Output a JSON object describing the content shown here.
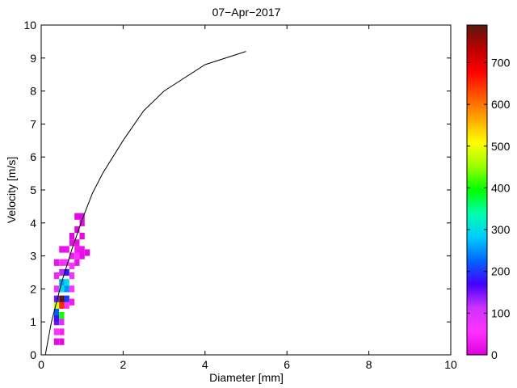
{
  "chart_data": {
    "type": "heatmap",
    "title": "07−Apr−2017",
    "xlabel": "Diameter [mm]",
    "ylabel": "Velocity [m/s]",
    "xlim": [
      0,
      10
    ],
    "ylim": [
      0,
      10
    ],
    "xticks": [
      "0",
      "2",
      "4",
      "6",
      "8",
      "10"
    ],
    "yticks": [
      "0",
      "1",
      "2",
      "3",
      "4",
      "5",
      "6",
      "7",
      "8",
      "9",
      "10"
    ],
    "grid": false,
    "colorbar": {
      "min": 0,
      "max": 790,
      "ticks": [
        "0",
        "100",
        "200",
        "300",
        "400",
        "500",
        "600",
        "700"
      ],
      "colormap": [
        "#dd00dd",
        "#ff33ff",
        "#cc33ff",
        "#4400ff",
        "#0066ff",
        "#00ccff",
        "#00ffaa",
        "#00ff00",
        "#99ff00",
        "#ffff00",
        "#ffaa00",
        "#ff5500",
        "#ff0000",
        "#bb0000",
        "#5a1a10"
      ]
    },
    "cells": [
      {
        "x": 0.375,
        "y": 0.4,
        "count": 10
      },
      {
        "x": 0.375,
        "y": 0.7,
        "count": 60
      },
      {
        "x": 0.375,
        "y": 1.0,
        "count": 150
      },
      {
        "x": 0.375,
        "y": 1.1,
        "count": 180
      },
      {
        "x": 0.375,
        "y": 1.3,
        "count": 220
      },
      {
        "x": 0.375,
        "y": 1.5,
        "count": 480
      },
      {
        "x": 0.375,
        "y": 1.7,
        "count": 150
      },
      {
        "x": 0.375,
        "y": 2.0,
        "count": 70
      },
      {
        "x": 0.375,
        "y": 2.4,
        "count": 40
      },
      {
        "x": 0.375,
        "y": 2.8,
        "count": 20
      },
      {
        "x": 0.5,
        "y": 0.4,
        "count": 10
      },
      {
        "x": 0.5,
        "y": 0.7,
        "count": 40
      },
      {
        "x": 0.5,
        "y": 1.0,
        "count": 100
      },
      {
        "x": 0.5,
        "y": 1.2,
        "count": 400
      },
      {
        "x": 0.5,
        "y": 1.5,
        "count": 650
      },
      {
        "x": 0.5,
        "y": 1.7,
        "count": 790
      },
      {
        "x": 0.5,
        "y": 2.0,
        "count": 300
      },
      {
        "x": 0.5,
        "y": 2.2,
        "count": 260
      },
      {
        "x": 0.5,
        "y": 2.5,
        "count": 120
      },
      {
        "x": 0.5,
        "y": 2.8,
        "count": 50
      },
      {
        "x": 0.5,
        "y": 3.2,
        "count": 20
      },
      {
        "x": 0.625,
        "y": 1.5,
        "count": 60
      },
      {
        "x": 0.625,
        "y": 1.7,
        "count": 200
      },
      {
        "x": 0.625,
        "y": 2.0,
        "count": 250
      },
      {
        "x": 0.625,
        "y": 2.2,
        "count": 300
      },
      {
        "x": 0.625,
        "y": 2.5,
        "count": 180
      },
      {
        "x": 0.625,
        "y": 2.8,
        "count": 60
      },
      {
        "x": 0.625,
        "y": 3.2,
        "count": 20
      },
      {
        "x": 0.75,
        "y": 1.6,
        "count": 30
      },
      {
        "x": 0.75,
        "y": 2.0,
        "count": 60
      },
      {
        "x": 0.75,
        "y": 2.4,
        "count": 70
      },
      {
        "x": 0.75,
        "y": 2.7,
        "count": 60
      },
      {
        "x": 0.75,
        "y": 3.0,
        "count": 30
      },
      {
        "x": 0.75,
        "y": 3.4,
        "count": 15
      },
      {
        "x": 0.75,
        "y": 3.6,
        "count": 10
      },
      {
        "x": 0.875,
        "y": 2.8,
        "count": 20
      },
      {
        "x": 0.875,
        "y": 3.0,
        "count": 60
      },
      {
        "x": 0.875,
        "y": 3.2,
        "count": 30
      },
      {
        "x": 0.875,
        "y": 3.4,
        "count": 15
      },
      {
        "x": 0.875,
        "y": 3.8,
        "count": 10
      },
      {
        "x": 0.875,
        "y": 4.2,
        "count": 10
      },
      {
        "x": 1.0,
        "y": 3.0,
        "count": 15
      },
      {
        "x": 1.0,
        "y": 3.2,
        "count": 20
      },
      {
        "x": 1.0,
        "y": 3.6,
        "count": 10
      },
      {
        "x": 1.0,
        "y": 4.0,
        "count": 10
      },
      {
        "x": 1.0,
        "y": 4.2,
        "count": 10
      },
      {
        "x": 1.125,
        "y": 3.1,
        "count": 10
      }
    ],
    "series": [
      {
        "type": "line",
        "x": [
          0.1,
          0.25,
          0.5,
          0.75,
          1.0,
          1.25,
          1.5,
          2.0,
          2.5,
          3.0,
          4.0,
          5.0
        ],
        "y": [
          0.0,
          1.0,
          2.2,
          3.2,
          4.1,
          4.9,
          5.5,
          6.5,
          7.4,
          8.0,
          8.8,
          9.2
        ]
      }
    ]
  }
}
